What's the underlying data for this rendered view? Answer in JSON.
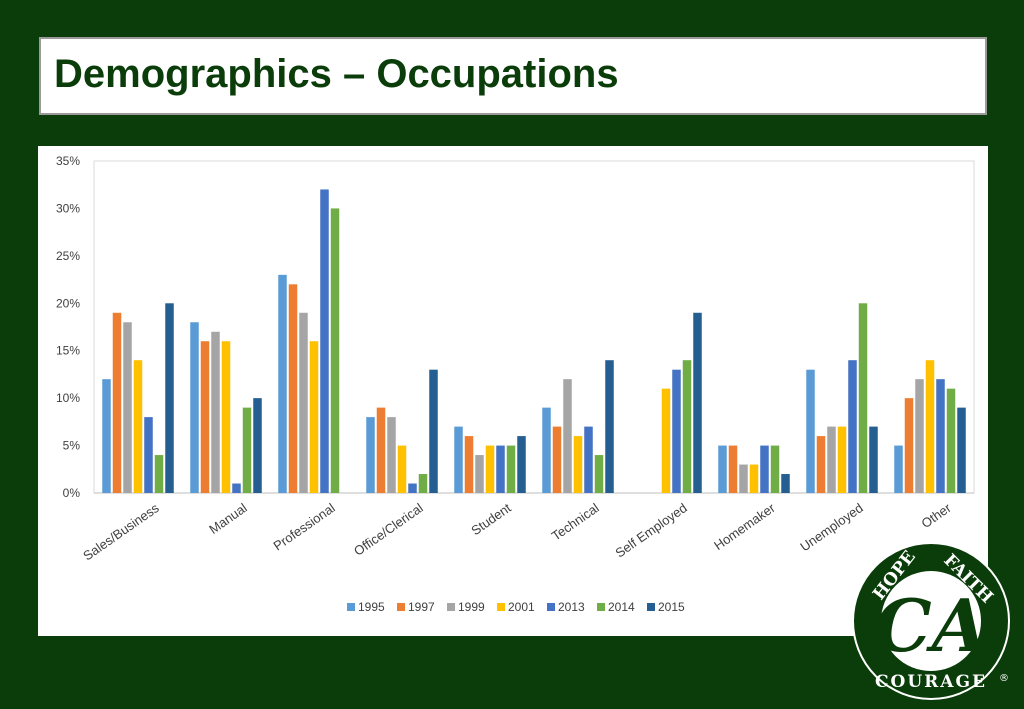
{
  "page": {
    "title": "Demographics – Occupations"
  },
  "colors": {
    "background": "#0b3d0b",
    "title_text": "#0b3d0b"
  },
  "logo": {
    "top_left": "HOPE",
    "top_right": "FAITH",
    "center": "CA",
    "bottom": "COURAGE",
    "mark": "®"
  },
  "chart_data": {
    "type": "bar",
    "categories": [
      "Sales/Business",
      "Manual",
      "Professional",
      "Office/Clerical",
      "Student",
      "Technical",
      "Self Employed",
      "Homemaker",
      "Unemployed",
      "Other"
    ],
    "series": [
      {
        "name": "1995",
        "color": "#5b9bd5",
        "values": [
          12,
          18,
          23,
          8,
          7,
          9,
          0,
          5,
          13,
          5
        ]
      },
      {
        "name": "1997",
        "color": "#ed7d31",
        "values": [
          19,
          16,
          22,
          9,
          6,
          7,
          0,
          5,
          6,
          10
        ]
      },
      {
        "name": "1999",
        "color": "#a5a5a5",
        "values": [
          18,
          17,
          19,
          8,
          4,
          12,
          0,
          3,
          7,
          12
        ]
      },
      {
        "name": "2001",
        "color": "#ffc000",
        "values": [
          14,
          16,
          16,
          5,
          5,
          6,
          11,
          3,
          7,
          14
        ]
      },
      {
        "name": "2013",
        "color": "#4472c4",
        "values": [
          8,
          1,
          32,
          1,
          5,
          7,
          13,
          5,
          14,
          12
        ]
      },
      {
        "name": "2014",
        "color": "#70ad47",
        "values": [
          4,
          9,
          30,
          2,
          5,
          4,
          14,
          5,
          20,
          11
        ]
      },
      {
        "name": "2015",
        "color": "#255e91",
        "values": [
          20,
          10,
          0,
          13,
          6,
          14,
          19,
          2,
          7,
          9
        ]
      }
    ],
    "yticks": [
      "0%",
      "5%",
      "10%",
      "15%",
      "20%",
      "25%",
      "30%",
      "35%"
    ],
    "ylim": [
      0,
      35
    ],
    "grid": false,
    "legend_position": "bottom"
  }
}
